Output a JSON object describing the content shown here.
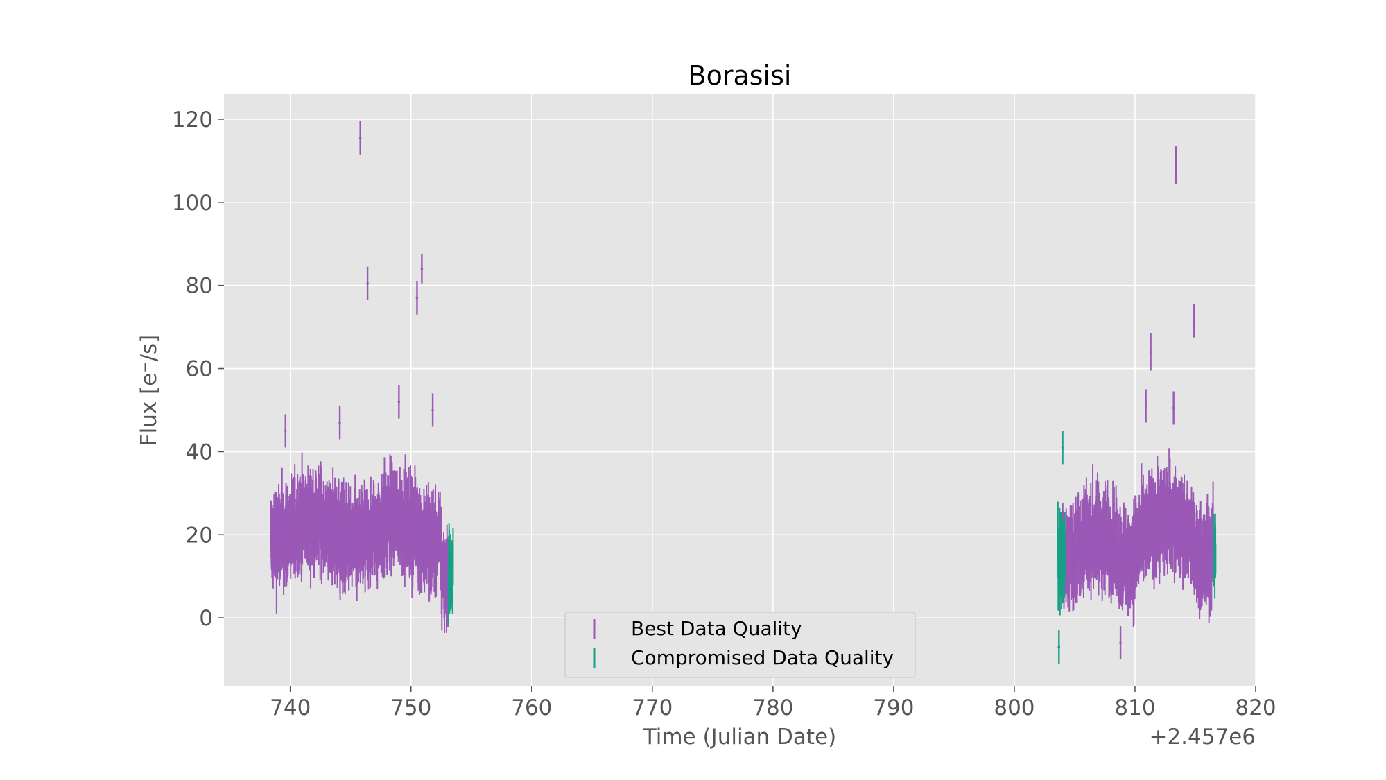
{
  "chart_data": {
    "type": "scatter",
    "title": "Borasisi",
    "xlabel": "Time (Julian Date)",
    "ylabel": "Flux [e⁻/s]",
    "x_offset_label": "+2.457e6",
    "xlim": [
      734.5,
      820.0
    ],
    "ylim": [
      -16.5,
      126.0
    ],
    "xticks": [
      740,
      750,
      760,
      770,
      780,
      790,
      800,
      810,
      820
    ],
    "yticks": [
      0,
      20,
      40,
      60,
      80,
      100,
      120
    ],
    "grid": true,
    "legend_position": "bottom-center",
    "series": [
      {
        "name": "Best Data Quality",
        "color": "#9b59b6",
        "segments": [
          {
            "x_start": 738.4,
            "x_end": 753.1
          },
          {
            "x_start": 804.0,
            "x_end": 816.5
          }
        ],
        "outliers": [
          {
            "x": 745.8,
            "y": 115.5,
            "err": 4.0
          },
          {
            "x": 746.4,
            "y": 80.5,
            "err": 4.0
          },
          {
            "x": 750.5,
            "y": 77.0,
            "err": 4.0
          },
          {
            "x": 750.9,
            "y": 84.0,
            "err": 3.5
          },
          {
            "x": 749.0,
            "y": 52.0,
            "err": 4.0
          },
          {
            "x": 751.8,
            "y": 50.0,
            "err": 4.0
          },
          {
            "x": 744.1,
            "y": 47.0,
            "err": 4.0
          },
          {
            "x": 739.6,
            "y": 45.0,
            "err": 4.0
          },
          {
            "x": 813.4,
            "y": 109.0,
            "err": 4.5
          },
          {
            "x": 814.9,
            "y": 71.5,
            "err": 4.0
          },
          {
            "x": 811.3,
            "y": 64.0,
            "err": 4.5
          },
          {
            "x": 810.9,
            "y": 51.0,
            "err": 4.0
          },
          {
            "x": 813.2,
            "y": 50.5,
            "err": 4.0
          },
          {
            "x": 808.8,
            "y": -6.0,
            "err": 4.0
          }
        ]
      },
      {
        "name": "Compromised Data Quality",
        "color": "#16a085",
        "segments": [
          {
            "x_start": 753.1,
            "x_end": 753.5
          },
          {
            "x_start": 803.6,
            "x_end": 804.2
          },
          {
            "x_start": 816.5,
            "x_end": 816.7
          }
        ],
        "outliers": [
          {
            "x": 804.0,
            "y": 41.0,
            "err": 4.0
          },
          {
            "x": 803.7,
            "y": -7.0,
            "err": 4.0
          }
        ]
      }
    ]
  }
}
